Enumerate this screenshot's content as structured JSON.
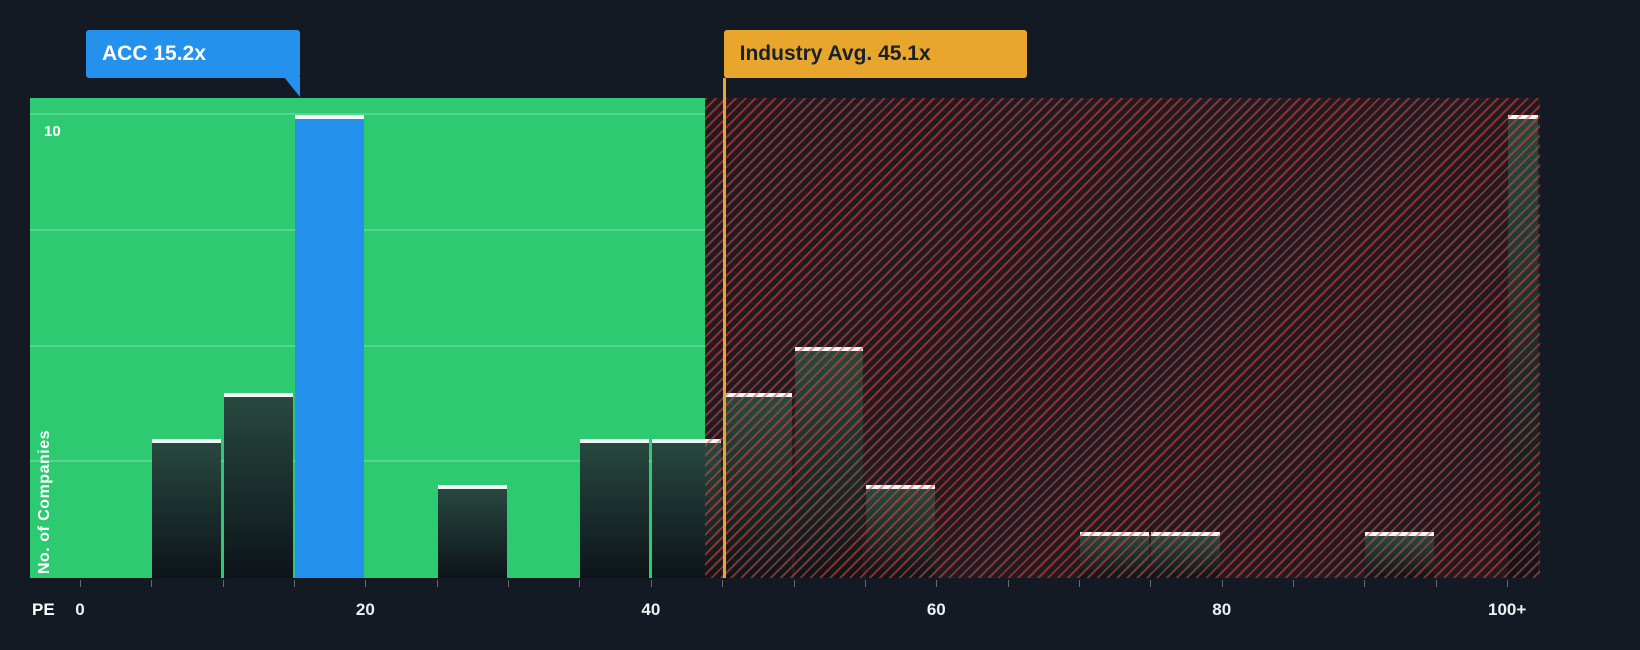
{
  "chart_data": {
    "type": "bar",
    "xlabel": "PE",
    "ylabel": "No. of Companies",
    "x_range": [
      -3.5,
      102.3
    ],
    "y_range": [
      0,
      10.37
    ],
    "y_gridlines": [
      2.5,
      5,
      7.5,
      10
    ],
    "y_tick_label": {
      "value": 10,
      "label": "10"
    },
    "x_ticks": [
      {
        "value": 0,
        "label": "0"
      },
      {
        "value": 20,
        "label": "20"
      },
      {
        "value": 40,
        "label": "40"
      },
      {
        "value": 60,
        "label": "60"
      },
      {
        "value": 80,
        "label": "80"
      },
      {
        "value": 100,
        "label": "100+"
      }
    ],
    "minor_ticks": {
      "min": 0,
      "max": 100,
      "step": 5
    },
    "bars": [
      {
        "x0": 5,
        "x1": 10,
        "value": 3,
        "highlight": false
      },
      {
        "x0": 10,
        "x1": 15,
        "value": 4,
        "highlight": false
      },
      {
        "x0": 15,
        "x1": 20,
        "value": 10,
        "highlight": true
      },
      {
        "x0": 25,
        "x1": 30,
        "value": 2,
        "highlight": false
      },
      {
        "x0": 35,
        "x1": 40,
        "value": 3,
        "highlight": false
      },
      {
        "x0": 40,
        "x1": 45,
        "value": 3,
        "highlight": false
      },
      {
        "x0": 45,
        "x1": 50,
        "value": 4,
        "highlight": false
      },
      {
        "x0": 50,
        "x1": 55,
        "value": 5,
        "highlight": false
      },
      {
        "x0": 55,
        "x1": 60,
        "value": 2,
        "highlight": false
      },
      {
        "x0": 70,
        "x1": 75,
        "value": 1,
        "highlight": false
      },
      {
        "x0": 75,
        "x1": 80,
        "value": 1,
        "highlight": false
      },
      {
        "x0": 90,
        "x1": 95,
        "value": 1,
        "highlight": false
      },
      {
        "x0": 100,
        "x1": 102.3,
        "value": 10,
        "highlight": false
      }
    ],
    "zones": {
      "green_max_x": 43.8
    },
    "annotations": {
      "company_callout": {
        "label": "ACC 15.2x",
        "x": 15.2
      },
      "industry_callout": {
        "label": "Industry Avg. 45.1x",
        "x": 45.1
      }
    },
    "colors": {
      "background": "#141a23",
      "green_zone": "#2dca72",
      "red_stripe": "#e2483c",
      "highlight_blue": "#2491ec",
      "industry_orange": "#e9a62c",
      "bar_cap_white": "#f4f6f7"
    }
  }
}
